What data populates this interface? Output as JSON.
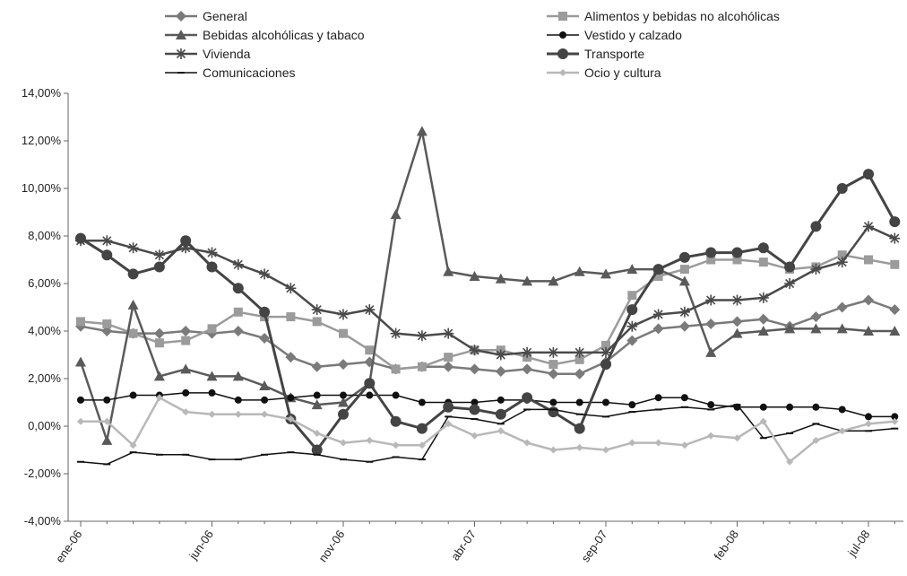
{
  "chart_data": {
    "type": "line",
    "x": [
      "ene-06",
      "feb-06",
      "mar-06",
      "abr-06",
      "may-06",
      "jun-06",
      "jul-06",
      "ago-06",
      "sep-06",
      "oct-06",
      "nov-06",
      "dic-06",
      "ene-07",
      "feb-07",
      "mar-07",
      "abr-07",
      "may-07",
      "jun-07",
      "jul-07",
      "ago-07",
      "sep-07",
      "oct-07",
      "nov-07",
      "dic-07",
      "ene-08",
      "feb-08",
      "mar-08",
      "abr-08",
      "may-08",
      "jun-08",
      "jul-08",
      "ago-08"
    ],
    "x_tick_labels": [
      "ene-06",
      "jun-06",
      "nov-06",
      "abr-07",
      "sep-07",
      "feb-08",
      "jul-08"
    ],
    "y_tick_labels": [
      "14,00%",
      "12,00%",
      "10,00%",
      "8,00%",
      "6,00%",
      "4,00%",
      "2,00%",
      "0,00%",
      "-2,00%",
      "-4,00%"
    ],
    "ylim": [
      -4,
      14
    ],
    "y_unit": "%",
    "grid": false,
    "legend_position": "top",
    "series": [
      {
        "name": "General",
        "color": "#7a7a7a",
        "marker": "diamond",
        "width": 2.5,
        "values": [
          4.2,
          4.0,
          3.9,
          3.9,
          4.0,
          3.9,
          4.0,
          3.7,
          2.9,
          2.5,
          2.6,
          2.7,
          2.4,
          2.5,
          2.5,
          2.4,
          2.3,
          2.4,
          2.2,
          2.2,
          2.7,
          3.6,
          4.1,
          4.2,
          4.3,
          4.4,
          4.5,
          4.2,
          4.6,
          5.0,
          5.3,
          4.9
        ]
      },
      {
        "name": "Alimentos y bebidas no alcohólicas",
        "color": "#9b9b9b",
        "marker": "square",
        "width": 2.5,
        "values": [
          4.4,
          4.3,
          3.9,
          3.5,
          3.6,
          4.1,
          4.8,
          4.6,
          4.6,
          4.4,
          3.9,
          3.2,
          2.4,
          2.5,
          2.9,
          3.2,
          3.2,
          2.9,
          2.6,
          2.8,
          3.4,
          5.5,
          6.3,
          6.6,
          7.0,
          7.0,
          6.9,
          6.6,
          6.7,
          7.2,
          7.0,
          6.8
        ]
      },
      {
        "name": "Bebidas alcohólicas y tabaco",
        "color": "#5a5a5a",
        "marker": "triangle",
        "width": 2.5,
        "values": [
          2.7,
          -0.6,
          5.1,
          2.1,
          2.4,
          2.1,
          2.1,
          1.7,
          1.2,
          0.9,
          1.0,
          1.8,
          8.9,
          12.4,
          6.5,
          6.3,
          6.2,
          6.1,
          6.1,
          6.5,
          6.4,
          6.6,
          6.6,
          6.1,
          3.1,
          3.9,
          4.0,
          4.1,
          4.1,
          4.1,
          4.0,
          4.0
        ]
      },
      {
        "name": "Vestido y calzado",
        "color": "#111111",
        "marker": "circle-small",
        "width": 1.5,
        "values": [
          1.1,
          1.1,
          1.3,
          1.3,
          1.4,
          1.4,
          1.1,
          1.1,
          1.2,
          1.3,
          1.3,
          1.3,
          1.3,
          1.0,
          1.0,
          1.0,
          1.1,
          1.1,
          1.0,
          1.0,
          1.0,
          0.9,
          1.2,
          1.2,
          0.9,
          0.8,
          0.8,
          0.8,
          0.8,
          0.7,
          0.4,
          0.4
        ]
      },
      {
        "name": "Vivienda",
        "color": "#4a4a4a",
        "marker": "star",
        "width": 2.5,
        "values": [
          7.8,
          7.8,
          7.5,
          7.2,
          7.5,
          7.3,
          6.8,
          6.4,
          5.8,
          4.9,
          4.7,
          4.9,
          3.9,
          3.8,
          3.9,
          3.2,
          3.0,
          3.1,
          3.1,
          3.1,
          3.1,
          4.2,
          4.7,
          4.8,
          5.3,
          5.3,
          5.4,
          6.0,
          6.6,
          6.9,
          8.4,
          7.9
        ]
      },
      {
        "name": "Transporte",
        "color": "#444444",
        "marker": "circle-large",
        "width": 3,
        "values": [
          7.9,
          7.2,
          6.4,
          6.7,
          7.8,
          6.7,
          5.8,
          4.8,
          0.3,
          -1.0,
          0.5,
          1.8,
          0.2,
          -0.1,
          0.8,
          0.7,
          0.5,
          1.2,
          0.6,
          -0.1,
          2.6,
          4.9,
          6.6,
          7.1,
          7.3,
          7.3,
          7.5,
          6.7,
          8.4,
          10.0,
          10.6,
          8.6
        ]
      },
      {
        "name": "Comunicaciones",
        "color": "#111111",
        "marker": "dash",
        "width": 1.5,
        "values": [
          -1.5,
          -1.6,
          -1.1,
          -1.2,
          -1.2,
          -1.4,
          -1.4,
          -1.2,
          -1.1,
          -1.2,
          -1.4,
          -1.5,
          -1.3,
          -1.4,
          0.4,
          0.3,
          0.1,
          0.7,
          0.7,
          0.5,
          0.4,
          0.6,
          0.7,
          0.8,
          0.7,
          0.9,
          -0.5,
          -0.3,
          0.1,
          -0.2,
          -0.2,
          -0.1
        ]
      },
      {
        "name": "Ocio y cultura",
        "color": "#b8b8b8",
        "marker": "diamond-small",
        "width": 2.5,
        "values": [
          0.2,
          0.2,
          -0.8,
          1.2,
          0.6,
          0.5,
          0.5,
          0.5,
          0.3,
          -0.3,
          -0.7,
          -0.6,
          -0.8,
          -0.8,
          0.1,
          -0.4,
          -0.2,
          -0.7,
          -1.0,
          -0.9,
          -1.0,
          -0.7,
          -0.7,
          -0.8,
          -0.4,
          -0.5,
          0.2,
          -1.5,
          -0.6,
          -0.2,
          0.1,
          0.2
        ]
      }
    ]
  }
}
